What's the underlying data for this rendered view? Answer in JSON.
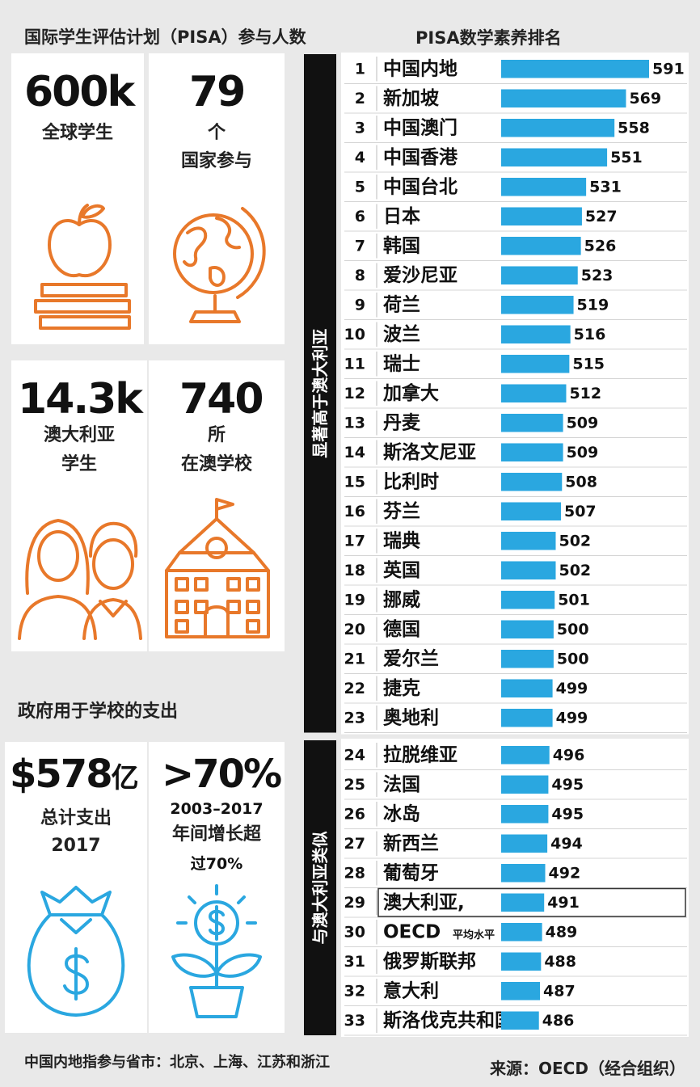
{
  "left_panel": {
    "title": "国际学生评估计划（PISA）参与人数",
    "stats": [
      {
        "value": "600k",
        "label": "全球学生",
        "icon": "apple-books-icon"
      },
      {
        "value": "79",
        "label_line1": "个",
        "label_line2": "国家参与",
        "icon": "globe-icon"
      },
      {
        "value": "14.3k",
        "label_line1": "澳大利亚",
        "label_line2": "学生",
        "icon": "students-icon"
      },
      {
        "value": "740",
        "label_line1": "所",
        "label_line2": "在澳学校",
        "icon": "school-icon"
      }
    ],
    "spending_title": "政府用于学校的支出",
    "spending": [
      {
        "value": "$578",
        "unit": "亿",
        "label_line1": "总计支出",
        "label_line2": "2017",
        "icon": "money-bag-icon"
      },
      {
        "value": ">70%",
        "label_line1": "2003–2017",
        "label_line2": "年间增长超",
        "label_line3": "过70%",
        "icon": "money-plant-icon"
      }
    ],
    "footnote": "中国内地指参与省市：北京、上海、江苏和浙江"
  },
  "source": "来源：OECD（经合组织）",
  "colors": {
    "bar": "#2aa7e0",
    "band": "#111111",
    "icon_orange": "#e8782a",
    "icon_blue": "#2aa7e0",
    "highlight_border": "#333333"
  },
  "chart_data": {
    "type": "bar",
    "title": "PISA数学素养排名",
    "orientation": "horizontal",
    "categories": [
      "中国内地",
      "新加坡",
      "中国澳门",
      "中国香港",
      "中国台北",
      "日本",
      "韩国",
      "爱沙尼亚",
      "荷兰",
      "波兰",
      "瑞士",
      "加拿大",
      "丹麦",
      "斯洛文尼亚",
      "比利时",
      "芬兰",
      "瑞典",
      "英国",
      "挪威",
      "德国",
      "爱尔兰",
      "捷克",
      "奥地利",
      "拉脱维亚",
      "法国",
      "冰岛",
      "新西兰",
      "葡萄牙",
      "澳大利亚,",
      "OECD",
      "俄罗斯联邦",
      "意大利",
      "斯洛伐克共和国"
    ],
    "category_note": {
      "index": 29,
      "text": "平均水平"
    },
    "ranks": [
      1,
      2,
      3,
      4,
      5,
      6,
      7,
      8,
      9,
      10,
      11,
      12,
      13,
      14,
      15,
      16,
      17,
      18,
      19,
      20,
      21,
      22,
      23,
      24,
      25,
      26,
      27,
      28,
      29,
      30,
      31,
      32,
      33
    ],
    "values": [
      591,
      569,
      558,
      551,
      531,
      527,
      526,
      523,
      519,
      516,
      515,
      512,
      509,
      509,
      508,
      507,
      502,
      502,
      501,
      500,
      500,
      499,
      499,
      496,
      495,
      495,
      494,
      492,
      491,
      489,
      488,
      487,
      486
    ],
    "groups": [
      {
        "label": "显著高于澳大利亚",
        "from_rank": 1,
        "to_rank": 23
      },
      {
        "label": "与澳大利亚类似",
        "from_rank": 24,
        "to_rank": 33
      }
    ],
    "highlight_rank": 29,
    "xlim": [
      450,
      591
    ]
  }
}
